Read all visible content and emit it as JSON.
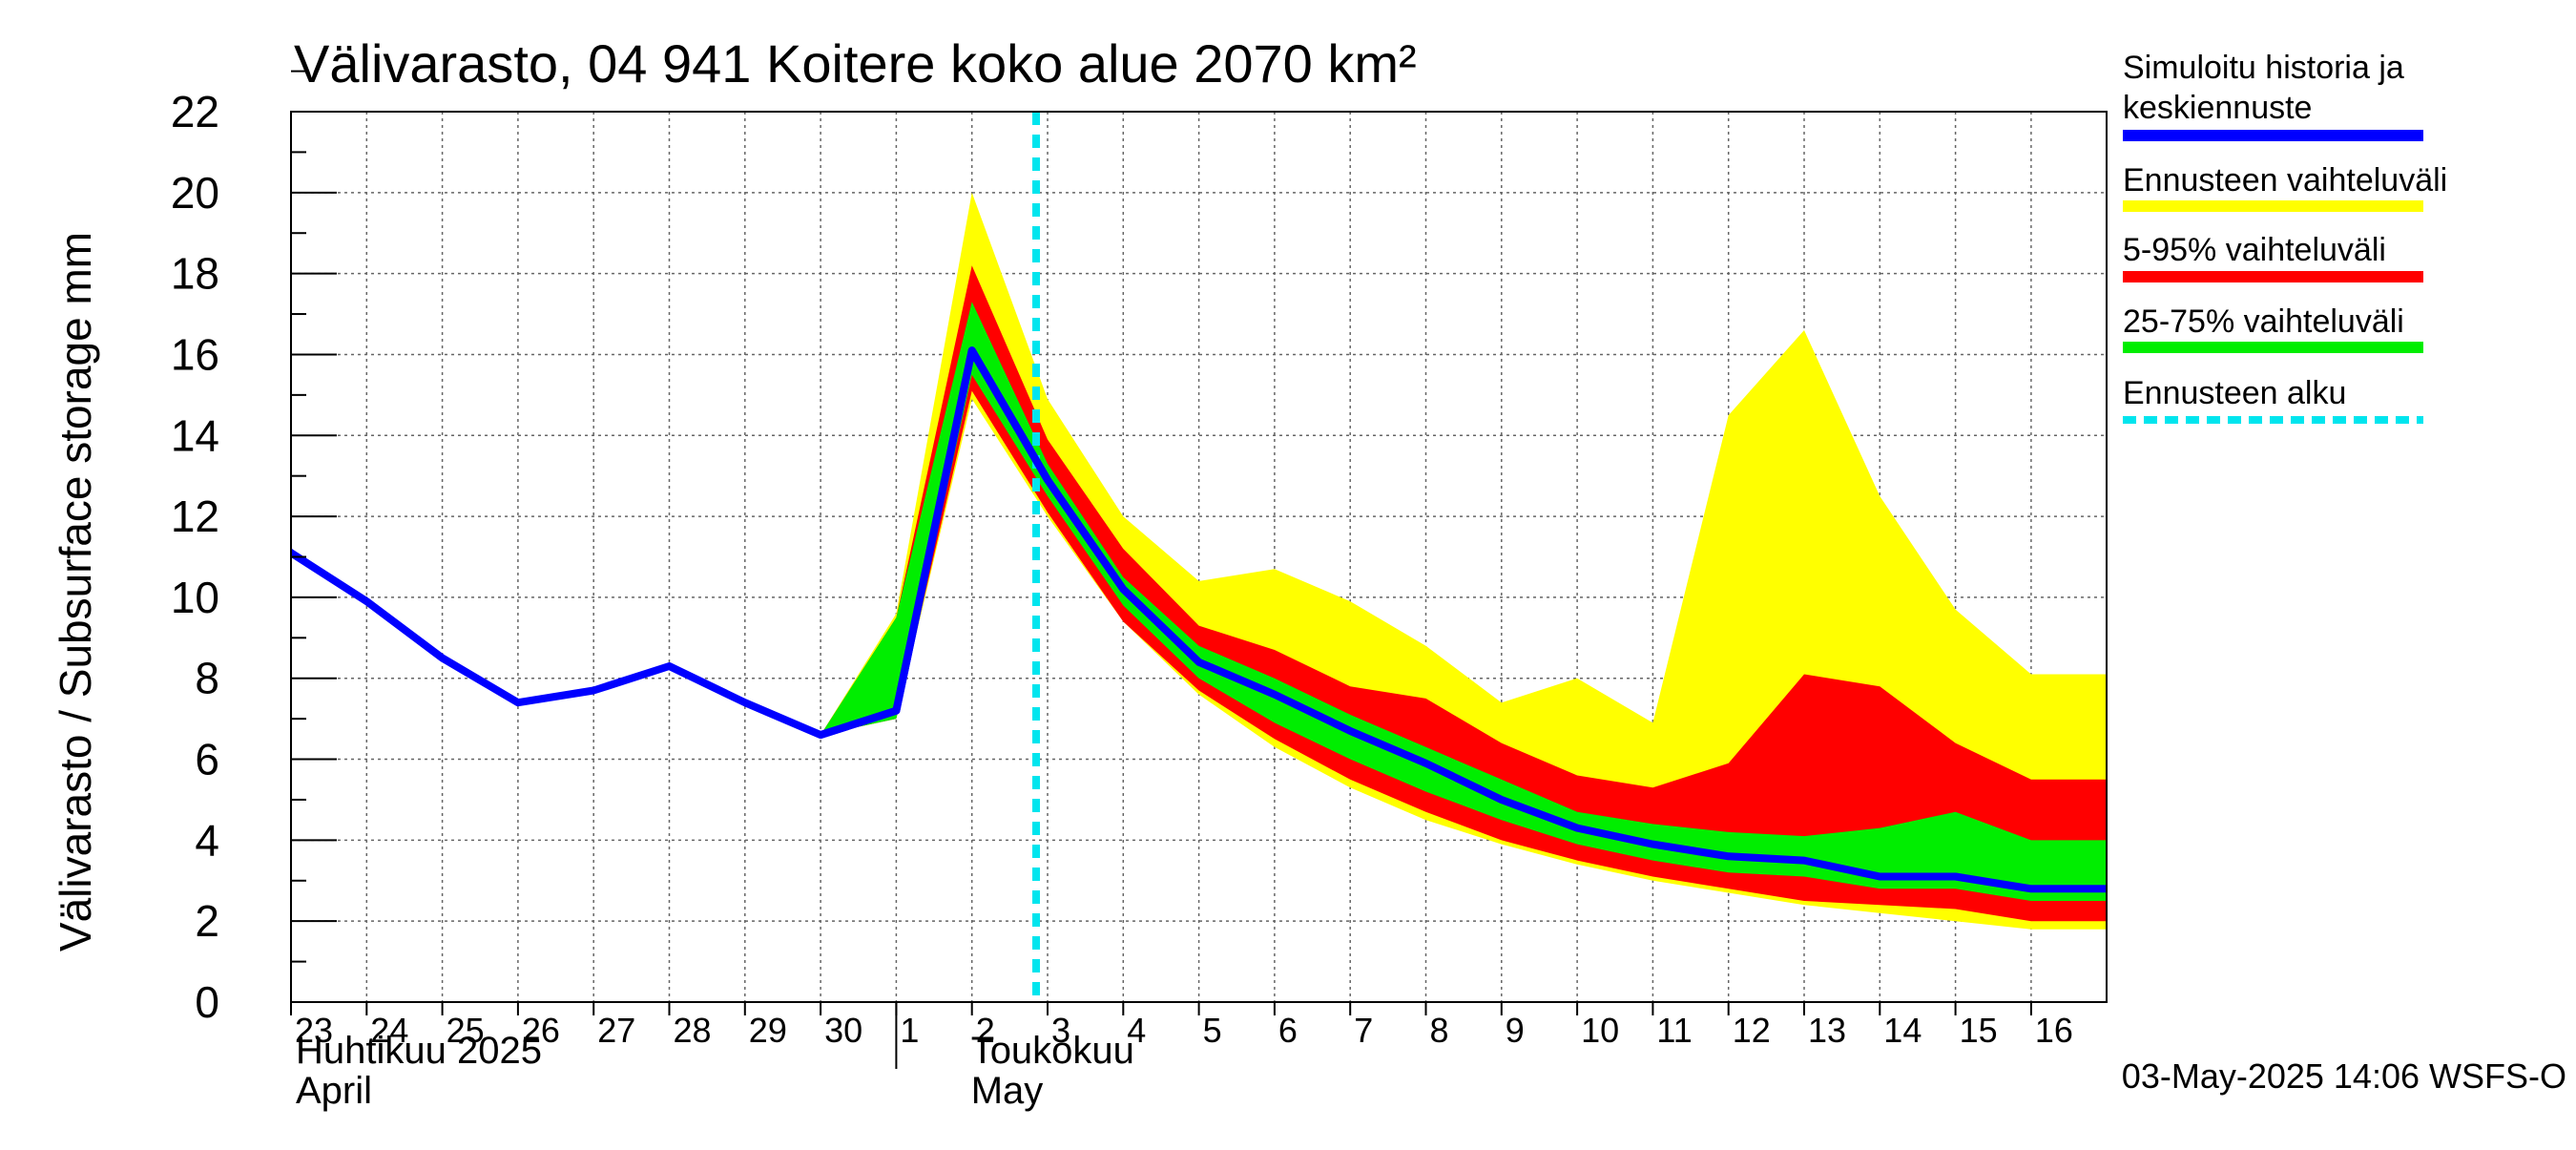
{
  "chart_data": {
    "type": "area",
    "title": "Välivarasto, 04 941 Koitere koko alue 2070 km²",
    "ylabel": "Välivarasto / Subsurface storage  mm",
    "ylim": [
      0,
      22
    ],
    "yticks": [
      0,
      2,
      4,
      6,
      8,
      10,
      12,
      14,
      16,
      18,
      20,
      22
    ],
    "grid": true,
    "legend_position": "right",
    "x_tick_labels": [
      "23",
      "24",
      "25",
      "26",
      "27",
      "28",
      "29",
      "30",
      "1",
      "2",
      "3",
      "4",
      "5",
      "6",
      "7",
      "8",
      "9",
      "10",
      "11",
      "12",
      "13",
      "14",
      "15",
      "16"
    ],
    "month_labels": [
      {
        "fi": "Huhtikuu  2025",
        "en": "April"
      },
      {
        "fi": "Toukokuu",
        "en": "May"
      }
    ],
    "forecast_start_x": "3",
    "history": {
      "x": [
        "22",
        "23",
        "24",
        "25",
        "26",
        "27",
        "28",
        "29",
        "30",
        "1",
        "2",
        "3"
      ],
      "values": [
        12.6,
        11.1,
        9.9,
        8.5,
        7.4,
        7.7,
        8.3,
        7.4,
        6.6,
        7.2,
        16.1,
        12.9
      ]
    },
    "forecast_x": [
      "30",
      "1",
      "2",
      "3",
      "4",
      "5",
      "6",
      "7",
      "8",
      "9",
      "10",
      "11",
      "12",
      "13",
      "14",
      "15",
      "16",
      "17"
    ],
    "series": [
      {
        "name": "Simuloitu historia ja keskiennuste",
        "values": [
          6.6,
          7.2,
          16.1,
          12.9,
          10.2,
          8.4,
          7.6,
          6.7,
          5.9,
          5.0,
          4.3,
          3.9,
          3.6,
          3.5,
          3.1,
          3.1,
          2.8,
          2.8
        ]
      },
      {
        "name": "Ennusteen vaihteluväli",
        "lower": [
          6.6,
          7.0,
          14.9,
          12.0,
          9.4,
          7.6,
          6.3,
          5.3,
          4.5,
          3.9,
          3.4,
          3.0,
          2.7,
          2.4,
          2.2,
          2.0,
          1.8,
          1.8
        ],
        "upper": [
          6.6,
          9.6,
          20.0,
          14.9,
          12.0,
          10.4,
          10.7,
          9.9,
          8.8,
          7.4,
          8.0,
          6.9,
          14.5,
          16.6,
          12.5,
          9.7,
          8.1,
          8.1
        ]
      },
      {
        "name": "5-95% vaihteluväli",
        "lower": [
          6.6,
          7.0,
          15.1,
          12.1,
          9.4,
          7.7,
          6.5,
          5.5,
          4.7,
          4.0,
          3.5,
          3.1,
          2.8,
          2.5,
          2.4,
          2.3,
          2.0,
          2.0
        ],
        "upper": [
          6.6,
          9.5,
          18.2,
          13.9,
          11.2,
          9.3,
          8.7,
          7.8,
          7.5,
          6.4,
          5.6,
          5.3,
          5.9,
          8.1,
          7.8,
          6.4,
          5.5,
          5.5
        ]
      },
      {
        "name": "25-75% vaihteluväli",
        "lower": [
          6.6,
          7.0,
          15.5,
          12.5,
          9.8,
          8.0,
          6.9,
          6.0,
          5.2,
          4.5,
          3.9,
          3.5,
          3.2,
          3.1,
          2.8,
          2.8,
          2.5,
          2.5
        ],
        "upper": [
          6.6,
          9.5,
          17.3,
          13.3,
          10.5,
          8.8,
          8.0,
          7.1,
          6.3,
          5.5,
          4.7,
          4.4,
          4.2,
          4.1,
          4.3,
          4.7,
          4.0,
          4.0
        ]
      }
    ],
    "legend": [
      {
        "label": "Simuloitu historia ja keskiennuste",
        "color": "#0000ff",
        "style": "line"
      },
      {
        "label": "Ennusteen vaihteluväli",
        "color": "#ffff00",
        "style": "line"
      },
      {
        "label": "5-95% vaihteluväli",
        "color": "#ff0000",
        "style": "line"
      },
      {
        "label": "25-75% vaihteluväli",
        "color": "#00ee00",
        "style": "line"
      },
      {
        "label": "Ennusteen alku",
        "color": "#00e5ee",
        "style": "dashed"
      }
    ],
    "footer": "03-May-2025 14:06 WSFS-O"
  }
}
